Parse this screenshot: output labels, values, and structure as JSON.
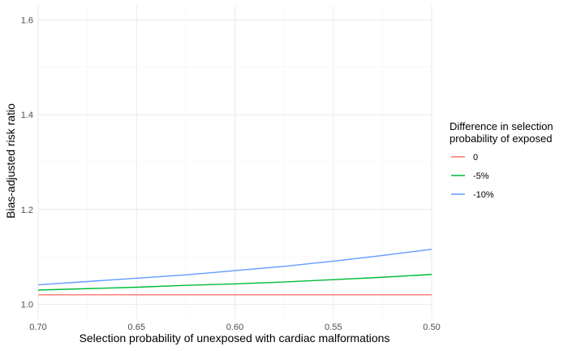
{
  "chart_data": {
    "type": "line",
    "title": "",
    "xlabel": "Selection probability of unexposed with cardiac malformations",
    "ylabel": "Bias-adjusted risk ratio",
    "x_reversed": true,
    "xlim": [
      0.7,
      0.5
    ],
    "ylim": [
      0.97,
      1.63
    ],
    "x_ticks": [
      "0.70",
      "0.65",
      "0.60",
      "0.55",
      "0.50"
    ],
    "x_tick_values": [
      0.7,
      0.65,
      0.6,
      0.55,
      0.5
    ],
    "y_ticks": [
      "1.0",
      "1.2",
      "1.4",
      "1.6"
    ],
    "y_tick_values": [
      1.0,
      1.2,
      1.4,
      1.6
    ],
    "grid": true,
    "legend": {
      "title_lines": [
        "Difference in selection",
        "probability of exposed"
      ],
      "placement": "right"
    },
    "x": [
      0.7,
      0.675,
      0.65,
      0.625,
      0.6,
      0.575,
      0.55,
      0.525,
      0.5
    ],
    "series": [
      {
        "name": "0",
        "color": "#F8766D",
        "values": [
          1.02,
          1.02,
          1.02,
          1.02,
          1.02,
          1.02,
          1.02,
          1.02,
          1.02
        ]
      },
      {
        "name": "-5%",
        "color": "#00BA38",
        "values": [
          1.03,
          1.033,
          1.036,
          1.04,
          1.043,
          1.047,
          1.052,
          1.057,
          1.063
        ]
      },
      {
        "name": "-10%",
        "color": "#619CFF",
        "values": [
          1.041,
          1.048,
          1.055,
          1.062,
          1.071,
          1.08,
          1.091,
          1.103,
          1.116
        ]
      }
    ]
  }
}
